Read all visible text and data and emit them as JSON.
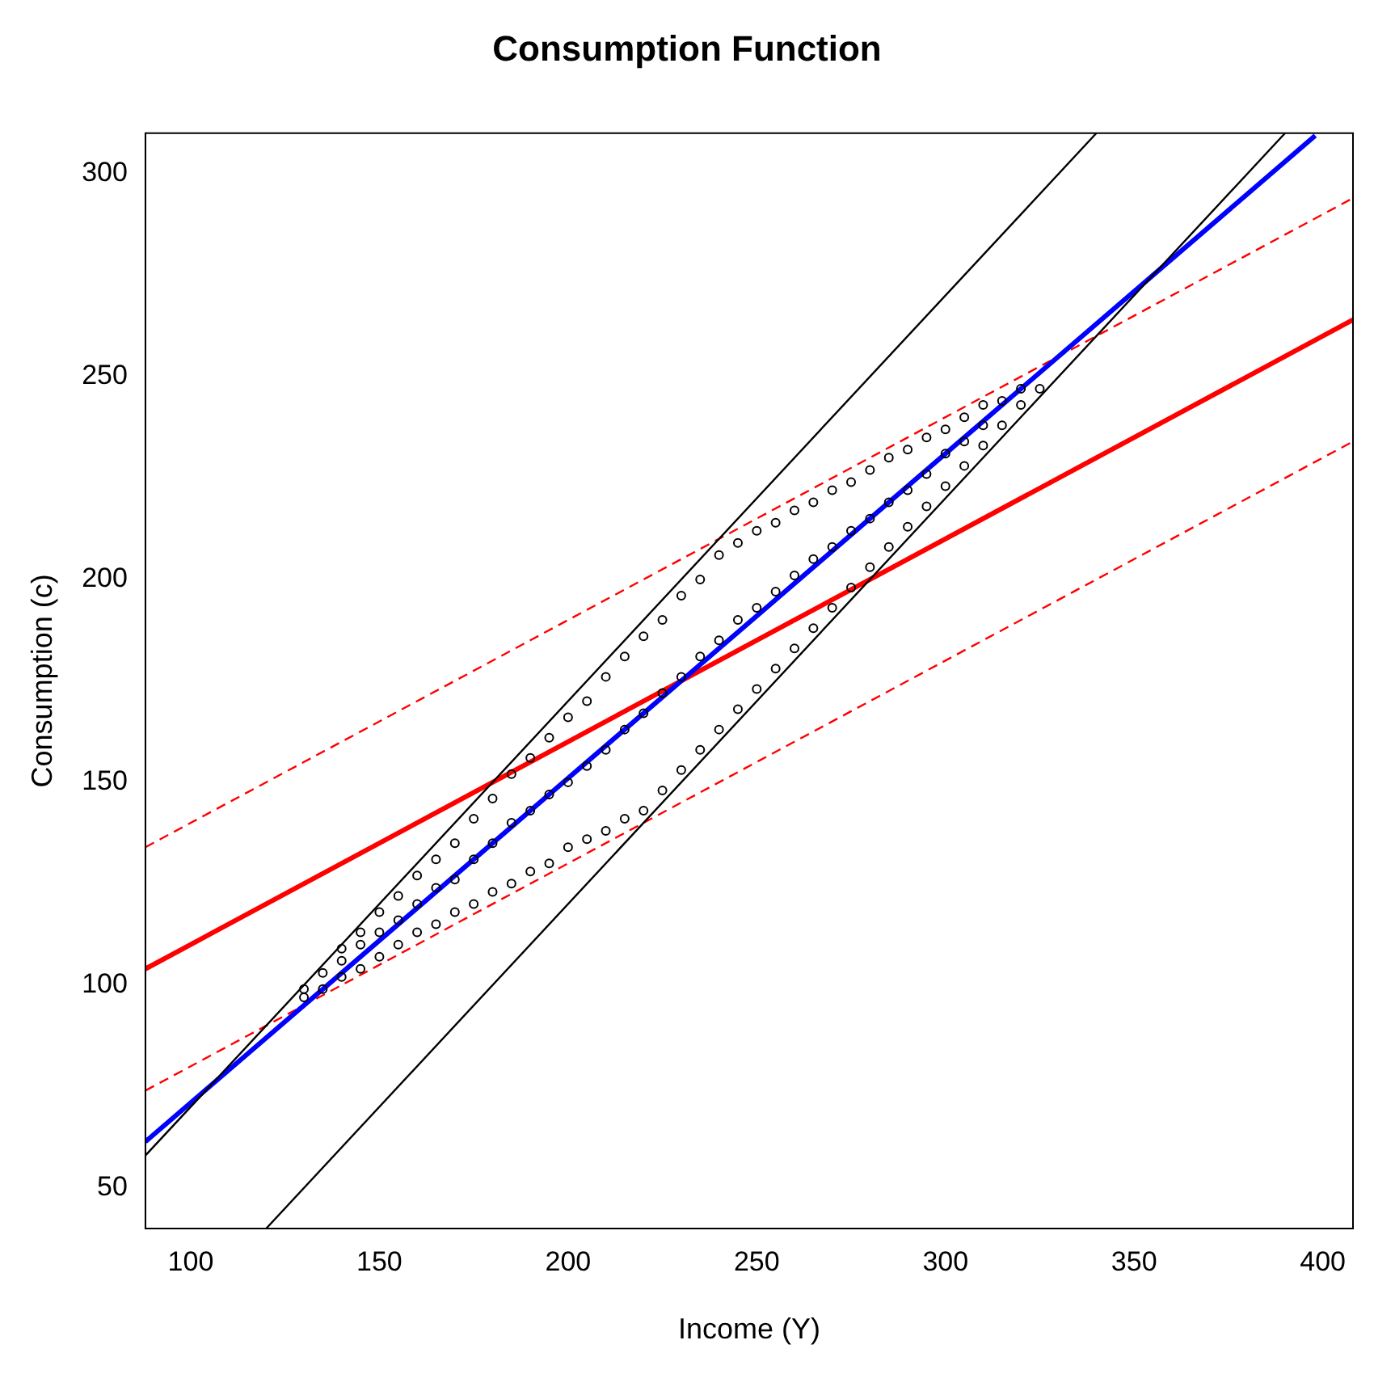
{
  "chart_data": {
    "type": "scatter",
    "title": "Consumption Function",
    "xlabel": "Income (Y)",
    "ylabel": "Consumption (c)",
    "xlim": [
      88,
      408
    ],
    "ylim": [
      40,
      310
    ],
    "xticks": [
      100,
      150,
      200,
      250,
      300,
      350,
      400
    ],
    "yticks": [
      50,
      100,
      150,
      200,
      250,
      300
    ],
    "grid": false,
    "legend": false,
    "series": [
      {
        "type": "scatter",
        "color": "#000000",
        "marker": "circle",
        "x": [
          130,
          130,
          135,
          135,
          140,
          140,
          140,
          145,
          145,
          145,
          150,
          150,
          150,
          155,
          155,
          155,
          160,
          160,
          160,
          165,
          165,
          165,
          170,
          170,
          170,
          175,
          175,
          175,
          180,
          180,
          180,
          185,
          185,
          185,
          190,
          190,
          190,
          195,
          195,
          195,
          200,
          200,
          200,
          205,
          205,
          205,
          210,
          210,
          210,
          215,
          215,
          215,
          220,
          220,
          220,
          225,
          225,
          225,
          230,
          230,
          230,
          235,
          235,
          235,
          240,
          240,
          240,
          245,
          245,
          245,
          250,
          250,
          250,
          255,
          255,
          255,
          260,
          260,
          260,
          265,
          265,
          265,
          270,
          270,
          270,
          275,
          275,
          275,
          280,
          280,
          280,
          285,
          285,
          285,
          290,
          290,
          290,
          295,
          295,
          295,
          300,
          300,
          300,
          305,
          305,
          305,
          310,
          310,
          310,
          315,
          315,
          320,
          320,
          325
        ],
        "values": [
          97,
          99,
          99,
          103,
          102,
          106,
          109,
          104,
          110,
          113,
          107,
          113,
          118,
          110,
          116,
          122,
          113,
          120,
          127,
          115,
          124,
          131,
          118,
          126,
          135,
          120,
          131,
          141,
          123,
          135,
          146,
          125,
          140,
          152,
          128,
          143,
          156,
          130,
          147,
          161,
          134,
          150,
          166,
          136,
          154,
          170,
          138,
          158,
          176,
          141,
          163,
          181,
          143,
          167,
          186,
          148,
          172,
          190,
          153,
          176,
          196,
          158,
          181,
          200,
          163,
          185,
          206,
          168,
          190,
          209,
          173,
          193,
          212,
          178,
          197,
          214,
          183,
          201,
          217,
          188,
          205,
          219,
          193,
          208,
          222,
          198,
          212,
          224,
          203,
          215,
          227,
          208,
          219,
          230,
          213,
          222,
          232,
          218,
          226,
          235,
          223,
          231,
          237,
          228,
          234,
          240,
          233,
          238,
          243,
          238,
          244,
          243,
          247,
          247
        ]
      },
      {
        "type": "line",
        "color": "#000000",
        "marker": "none",
        "line_style": "solid",
        "x": [
          88,
          340
        ],
        "values": [
          58,
          310
        ]
      },
      {
        "type": "line",
        "color": "#000000",
        "marker": "none",
        "line_style": "solid",
        "x": [
          120,
          390
        ],
        "values": [
          40,
          310
        ]
      },
      {
        "type": "line",
        "color": "#0000ff",
        "marker": "none",
        "line_style": "solid",
        "x": [
          88,
          398
        ],
        "values": [
          61.4,
          309.4
        ]
      },
      {
        "type": "line",
        "color": "#ff0000",
        "marker": "none",
        "line_style": "solid",
        "x": [
          88,
          408
        ],
        "values": [
          104,
          264
        ]
      },
      {
        "type": "line",
        "color": "#ff0000",
        "marker": "none",
        "line_style": "dashed",
        "x": [
          88,
          408
        ],
        "values": [
          134,
          294
        ]
      },
      {
        "type": "line",
        "color": "#ff0000",
        "marker": "none",
        "line_style": "dashed",
        "x": [
          88,
          408
        ],
        "values": [
          74,
          234
        ]
      }
    ]
  }
}
